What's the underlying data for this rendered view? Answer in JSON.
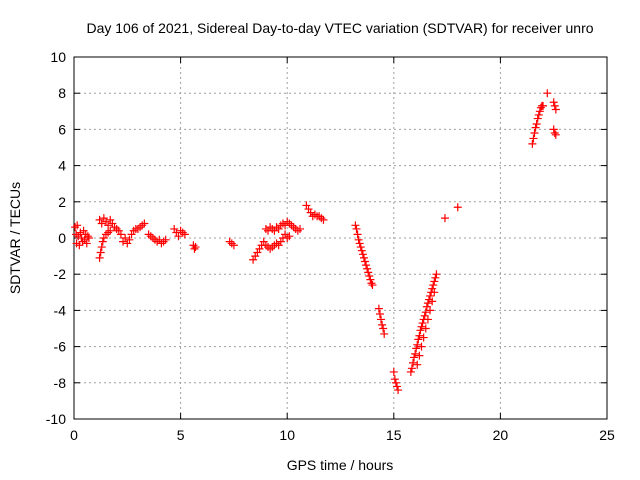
{
  "chart_data": {
    "type": "scatter",
    "title": "Day 106 of 2021, Sidereal Day-to-day VTEC variation (SDTVAR) for receiver unro",
    "xlabel": "GPS time / hours",
    "ylabel": "SDTVAR / TECUs",
    "xlim": [
      0,
      25
    ],
    "ylim": [
      -10,
      10
    ],
    "xticks": [
      0,
      5,
      10,
      15,
      20,
      25
    ],
    "yticks": [
      -10,
      -8,
      -6,
      -4,
      -2,
      0,
      2,
      4,
      6,
      8,
      10
    ],
    "grid": true,
    "marker": "plus",
    "color": "#ff0000",
    "series": [
      {
        "points": [
          [
            0.05,
            0.6
          ],
          [
            0.1,
            0.2
          ],
          [
            0.12,
            -0.3
          ],
          [
            0.15,
            0.7
          ],
          [
            0.2,
            0.1
          ],
          [
            0.25,
            -0.4
          ],
          [
            0.3,
            0.3
          ],
          [
            0.35,
            0.0
          ],
          [
            0.4,
            -0.2
          ],
          [
            0.45,
            0.4
          ],
          [
            0.5,
            -0.1
          ],
          [
            0.55,
            0.2
          ],
          [
            0.6,
            -0.3
          ],
          [
            0.65,
            0.1
          ],
          [
            0.7,
            0.0
          ],
          [
            1.2,
            -1.1
          ],
          [
            1.25,
            -0.8
          ],
          [
            1.3,
            -0.5
          ],
          [
            1.35,
            -0.2
          ],
          [
            1.4,
            0.0
          ],
          [
            1.5,
            0.2
          ],
          [
            1.6,
            0.3
          ],
          [
            1.7,
            0.4
          ],
          [
            1.2,
            1.0
          ],
          [
            1.3,
            0.8
          ],
          [
            1.4,
            1.1
          ],
          [
            1.5,
            0.9
          ],
          [
            1.6,
            0.7
          ],
          [
            1.7,
            1.0
          ],
          [
            1.8,
            0.8
          ],
          [
            1.9,
            0.6
          ],
          [
            2.0,
            0.5
          ],
          [
            2.1,
            0.4
          ],
          [
            2.2,
            0.2
          ],
          [
            2.3,
            -0.2
          ],
          [
            2.4,
            0.0
          ],
          [
            2.5,
            -0.3
          ],
          [
            2.6,
            -0.1
          ],
          [
            2.7,
            0.2
          ],
          [
            2.8,
            0.4
          ],
          [
            2.9,
            0.5
          ],
          [
            3.0,
            0.5
          ],
          [
            3.1,
            0.6
          ],
          [
            3.2,
            0.7
          ],
          [
            3.3,
            0.8
          ],
          [
            3.5,
            0.2
          ],
          [
            3.6,
            0.1
          ],
          [
            3.7,
            0.0
          ],
          [
            3.8,
            -0.1
          ],
          [
            3.9,
            -0.2
          ],
          [
            4.0,
            -0.1
          ],
          [
            4.1,
            -0.3
          ],
          [
            4.2,
            -0.2
          ],
          [
            4.3,
            -0.1
          ],
          [
            4.7,
            0.5
          ],
          [
            4.8,
            0.3
          ],
          [
            4.9,
            0.1
          ],
          [
            5.0,
            0.4
          ],
          [
            5.1,
            0.3
          ],
          [
            5.2,
            0.2
          ],
          [
            5.6,
            -0.4
          ],
          [
            5.65,
            -0.6
          ],
          [
            5.7,
            -0.5
          ],
          [
            7.3,
            -0.2
          ],
          [
            7.4,
            -0.3
          ],
          [
            7.5,
            -0.4
          ],
          [
            8.4,
            -1.2
          ],
          [
            8.5,
            -1.0
          ],
          [
            8.6,
            -0.8
          ],
          [
            8.7,
            -0.6
          ],
          [
            8.8,
            -0.4
          ],
          [
            8.9,
            -0.2
          ],
          [
            9.0,
            -0.4
          ],
          [
            9.1,
            -0.5
          ],
          [
            9.2,
            -0.6
          ],
          [
            9.3,
            -0.5
          ],
          [
            9.4,
            -0.4
          ],
          [
            9.5,
            -0.3
          ],
          [
            9.6,
            -0.4
          ],
          [
            9.7,
            -0.2
          ],
          [
            9.8,
            0.0
          ],
          [
            9.9,
            0.2
          ],
          [
            10.0,
            0.0
          ],
          [
            10.1,
            0.1
          ],
          [
            9.0,
            0.5
          ],
          [
            9.1,
            0.4
          ],
          [
            9.2,
            0.6
          ],
          [
            9.3,
            0.5
          ],
          [
            9.4,
            0.4
          ],
          [
            9.5,
            0.6
          ],
          [
            9.6,
            0.5
          ],
          [
            9.7,
            0.7
          ],
          [
            9.8,
            0.8
          ],
          [
            9.9,
            0.7
          ],
          [
            10.0,
            0.9
          ],
          [
            10.1,
            0.8
          ],
          [
            10.2,
            0.7
          ],
          [
            10.3,
            0.6
          ],
          [
            10.4,
            0.5
          ],
          [
            10.5,
            0.4
          ],
          [
            10.6,
            0.5
          ],
          [
            10.9,
            1.8
          ],
          [
            11.0,
            1.6
          ],
          [
            11.1,
            1.4
          ],
          [
            11.2,
            1.2
          ],
          [
            11.3,
            1.3
          ],
          [
            11.4,
            1.2
          ],
          [
            11.5,
            1.2
          ],
          [
            11.6,
            1.1
          ],
          [
            11.7,
            1.0
          ],
          [
            13.2,
            0.7
          ],
          [
            13.25,
            0.5
          ],
          [
            13.3,
            0.2
          ],
          [
            13.35,
            -0.1
          ],
          [
            13.4,
            -0.3
          ],
          [
            13.45,
            -0.5
          ],
          [
            13.5,
            -0.7
          ],
          [
            13.55,
            -0.9
          ],
          [
            13.6,
            -1.1
          ],
          [
            13.65,
            -1.3
          ],
          [
            13.7,
            -1.5
          ],
          [
            13.75,
            -1.7
          ],
          [
            13.8,
            -1.9
          ],
          [
            13.85,
            -2.1
          ],
          [
            13.9,
            -2.3
          ],
          [
            13.95,
            -2.5
          ],
          [
            14.0,
            -2.6
          ],
          [
            14.3,
            -3.9
          ],
          [
            14.35,
            -4.2
          ],
          [
            14.4,
            -4.5
          ],
          [
            14.45,
            -4.8
          ],
          [
            14.5,
            -5.0
          ],
          [
            14.55,
            -5.3
          ],
          [
            15.0,
            -7.4
          ],
          [
            15.05,
            -7.8
          ],
          [
            15.1,
            -8.0
          ],
          [
            15.15,
            -8.2
          ],
          [
            15.2,
            -8.4
          ],
          [
            15.8,
            -7.4
          ],
          [
            15.85,
            -7.2
          ],
          [
            15.9,
            -6.9
          ],
          [
            15.95,
            -6.6
          ],
          [
            16.0,
            -6.4
          ],
          [
            16.05,
            -6.1
          ],
          [
            16.1,
            -5.9
          ],
          [
            16.15,
            -5.6
          ],
          [
            16.2,
            -5.4
          ],
          [
            16.25,
            -5.1
          ],
          [
            16.3,
            -4.9
          ],
          [
            16.35,
            -4.7
          ],
          [
            16.4,
            -4.5
          ],
          [
            16.45,
            -4.3
          ],
          [
            16.5,
            -4.1
          ],
          [
            16.55,
            -3.8
          ],
          [
            16.6,
            -3.6
          ],
          [
            16.65,
            -3.4
          ],
          [
            16.7,
            -3.2
          ],
          [
            16.75,
            -3.0
          ],
          [
            16.8,
            -2.8
          ],
          [
            16.85,
            -2.6
          ],
          [
            16.9,
            -2.4
          ],
          [
            16.95,
            -2.2
          ],
          [
            17.0,
            -2.0
          ],
          [
            16.1,
            -7.0
          ],
          [
            16.2,
            -6.5
          ],
          [
            16.3,
            -6.0
          ],
          [
            16.4,
            -5.5
          ],
          [
            16.5,
            -5.0
          ],
          [
            16.6,
            -4.5
          ],
          [
            16.7,
            -4.0
          ],
          [
            16.8,
            -3.5
          ],
          [
            16.9,
            -3.0
          ],
          [
            17.4,
            1.1
          ],
          [
            18.0,
            1.7
          ],
          [
            21.5,
            5.2
          ],
          [
            21.55,
            5.5
          ],
          [
            21.6,
            5.8
          ],
          [
            21.65,
            6.1
          ],
          [
            21.7,
            6.3
          ],
          [
            21.75,
            6.6
          ],
          [
            21.8,
            6.8
          ],
          [
            21.85,
            7.0
          ],
          [
            21.9,
            7.2
          ],
          [
            21.95,
            7.3
          ],
          [
            22.0,
            7.3
          ],
          [
            22.2,
            8.0
          ],
          [
            22.5,
            7.5
          ],
          [
            22.55,
            7.3
          ],
          [
            22.6,
            7.1
          ],
          [
            22.5,
            6.0
          ],
          [
            22.55,
            5.8
          ],
          [
            22.6,
            5.7
          ]
        ]
      }
    ]
  }
}
